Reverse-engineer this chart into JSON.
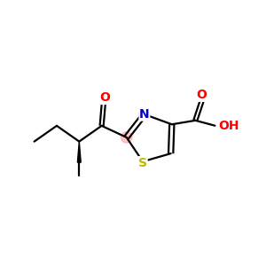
{
  "background_color": "#ffffff",
  "bond_color": "#000000",
  "atom_colors": {
    "O": "#ff0000",
    "N": "#0000cc",
    "S": "#bbbb00",
    "C": "#000000",
    "H": "#000000"
  },
  "highlight_color": "#ff9999",
  "highlight_alpha": 0.55,
  "figsize": [
    3.0,
    3.0
  ],
  "dpi": 100,
  "lw": 1.6
}
